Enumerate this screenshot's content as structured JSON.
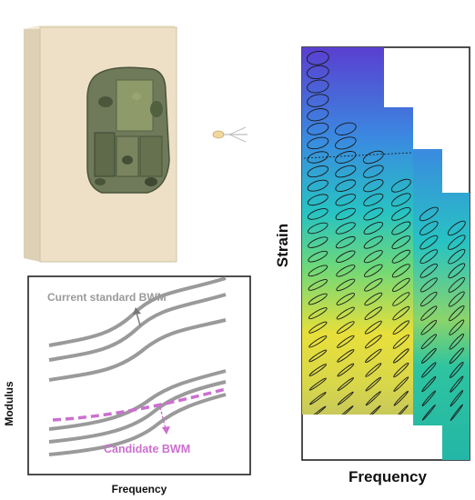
{
  "figure": {
    "block_color": "#ede0c6",
    "vest_color": "#6f7a5a",
    "probe_color": "#bdbdbd"
  },
  "modulus_plot": {
    "ylabel": "Modulus",
    "xlabel": "Frequency",
    "current_label": "Current standard BWM",
    "candidate_label": "Candidate BWM",
    "current_color": "#9a9a9a",
    "candidate_color": "#cc6fd0"
  },
  "strain_map": {
    "ylabel": "Strain",
    "xlabel": "Frequency",
    "columns": 6,
    "rows": 26,
    "filled_rows_per_column": [
      26,
      21,
      19,
      17,
      15,
      14
    ],
    "colormap": [
      "#5a3fd0",
      "#3a8ae0",
      "#27c3c3",
      "#6ed879",
      "#e8df3a",
      "#2ec4a0"
    ]
  }
}
